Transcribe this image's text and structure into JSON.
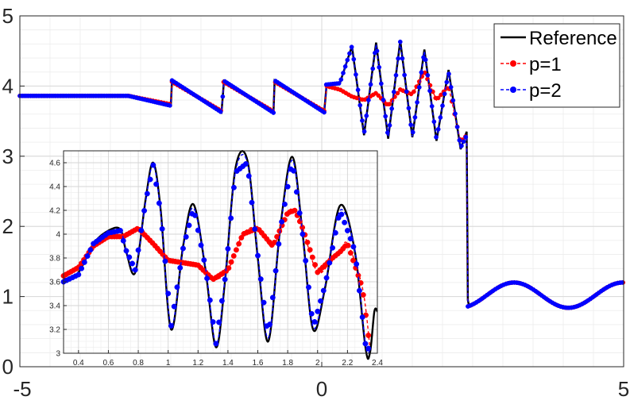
{
  "chart_data": [
    {
      "type": "line",
      "title": "",
      "xlabel": "",
      "ylabel": "",
      "xlim": [
        -5,
        5
      ],
      "ylim": [
        0,
        5
      ],
      "xticks": [
        "-5",
        "0",
        "5"
      ],
      "yticks": [
        "0",
        "1",
        "2",
        "3",
        "4",
        "5"
      ],
      "grid": true,
      "legend": "top-right",
      "series": [
        {
          "name": "Reference",
          "color": "#000000",
          "marker": "none",
          "style": "solid"
        },
        {
          "name": "p=1",
          "color": "#ff0000",
          "marker": "circle",
          "style": "dashed"
        },
        {
          "name": "p=2",
          "color": "#0000ff",
          "marker": "circle",
          "style": "dashed"
        }
      ],
      "profile": {
        "x": [
          -5,
          -3.2,
          -2.5,
          -2.48,
          -1.65,
          -1.63,
          -0.8,
          -0.78,
          0.05,
          0.07,
          0.3,
          0.5,
          0.7,
          0.9,
          1.1,
          1.3,
          1.5,
          1.7,
          1.9,
          2.1,
          2.3,
          2.4,
          2.42,
          3,
          3.5,
          4,
          4.5,
          5
        ],
        "reference": [
          3.86,
          3.86,
          3.72,
          4.08,
          3.62,
          4.08,
          3.62,
          4.08,
          3.62,
          4.02,
          4.04,
          4.57,
          3.3,
          4.62,
          3.25,
          4.65,
          3.27,
          4.52,
          3.22,
          4.23,
          3.1,
          3.35,
          0.95,
          1.2,
          0.85,
          1.2,
          0.85,
          1.0
        ],
        "p1": [
          3.86,
          3.86,
          3.74,
          4.06,
          3.64,
          4.06,
          3.64,
          4.06,
          3.64,
          4.0,
          3.95,
          3.85,
          3.8,
          3.9,
          3.72,
          3.95,
          3.88,
          4.2,
          3.8,
          4.0,
          3.2,
          3.3,
          0.95,
          1.2,
          0.85,
          1.2,
          0.85,
          1.0
        ],
        "p2": [
          3.86,
          3.86,
          3.72,
          4.08,
          3.62,
          4.08,
          3.62,
          4.08,
          3.62,
          4.02,
          4.04,
          4.57,
          3.32,
          4.6,
          3.27,
          4.63,
          3.28,
          4.5,
          3.24,
          4.2,
          3.12,
          3.3,
          0.95,
          1.2,
          0.85,
          1.2,
          0.85,
          1.0
        ]
      }
    },
    {
      "type": "line",
      "title": "",
      "inset": true,
      "xlim": [
        0.3,
        2.4
      ],
      "ylim": [
        3,
        4.7
      ],
      "xticks": [
        "0.4",
        "0.6",
        "0.8",
        "1",
        "1.2",
        "1.4",
        "1.6",
        "1.8",
        "2",
        "2.2",
        "2.4"
      ],
      "yticks": [
        "3",
        "3.2",
        "3.4",
        "3.6",
        "3.8",
        "4",
        "4.2",
        "4.4",
        "4.6"
      ],
      "grid": true,
      "series": [
        {
          "name": "Reference",
          "color": "#000000",
          "x": [
            0.3,
            0.4,
            0.5,
            0.6,
            0.68,
            0.72,
            0.78,
            0.85,
            0.9,
            0.95,
            1.02,
            1.1,
            1.17,
            1.25,
            1.32,
            1.38,
            1.45,
            1.53,
            1.6,
            1.67,
            1.75,
            1.83,
            1.9,
            1.97,
            2.05,
            2.15,
            2.25,
            2.32,
            2.35,
            2.38,
            2.4
          ],
          "y": [
            3.62,
            3.68,
            3.92,
            4.03,
            4.04,
            3.85,
            3.68,
            4.3,
            4.6,
            4.2,
            3.2,
            3.9,
            4.25,
            3.7,
            3.05,
            3.6,
            4.55,
            4.62,
            3.8,
            3.1,
            4.05,
            4.65,
            4.0,
            3.2,
            3.55,
            4.24,
            3.85,
            3.05,
            3.0,
            3.35,
            3.35
          ]
        },
        {
          "name": "p=1",
          "color": "#ff0000",
          "x": [
            0.3,
            0.4,
            0.5,
            0.6,
            0.7,
            0.8,
            0.9,
            1.0,
            1.1,
            1.2,
            1.3,
            1.4,
            1.5,
            1.6,
            1.7,
            1.8,
            1.85,
            1.9,
            2.0,
            2.1,
            2.15,
            2.2,
            2.3,
            2.35
          ],
          "y": [
            3.65,
            3.72,
            3.9,
            3.98,
            3.98,
            4.05,
            3.92,
            3.78,
            3.76,
            3.74,
            3.62,
            3.7,
            4.0,
            4.05,
            3.9,
            4.18,
            4.2,
            4.05,
            3.68,
            3.8,
            3.85,
            3.92,
            3.55,
            3.05
          ]
        },
        {
          "name": "p=2",
          "color": "#0000ff",
          "x": [
            0.3,
            0.4,
            0.5,
            0.6,
            0.68,
            0.72,
            0.78,
            0.85,
            0.9,
            0.95,
            1.02,
            1.1,
            1.17,
            1.25,
            1.32,
            1.38,
            1.45,
            1.53,
            1.6,
            1.67,
            1.75,
            1.83,
            1.9,
            1.97,
            2.05,
            2.15,
            2.25,
            2.32,
            2.35
          ],
          "y": [
            3.6,
            3.66,
            3.92,
            4.01,
            4.03,
            3.86,
            3.7,
            4.28,
            4.58,
            4.18,
            3.23,
            3.88,
            4.22,
            3.72,
            3.08,
            3.62,
            4.52,
            4.6,
            3.82,
            3.13,
            4.03,
            4.62,
            4.0,
            3.22,
            3.57,
            4.2,
            3.86,
            3.08,
            3.02
          ]
        }
      ]
    }
  ]
}
